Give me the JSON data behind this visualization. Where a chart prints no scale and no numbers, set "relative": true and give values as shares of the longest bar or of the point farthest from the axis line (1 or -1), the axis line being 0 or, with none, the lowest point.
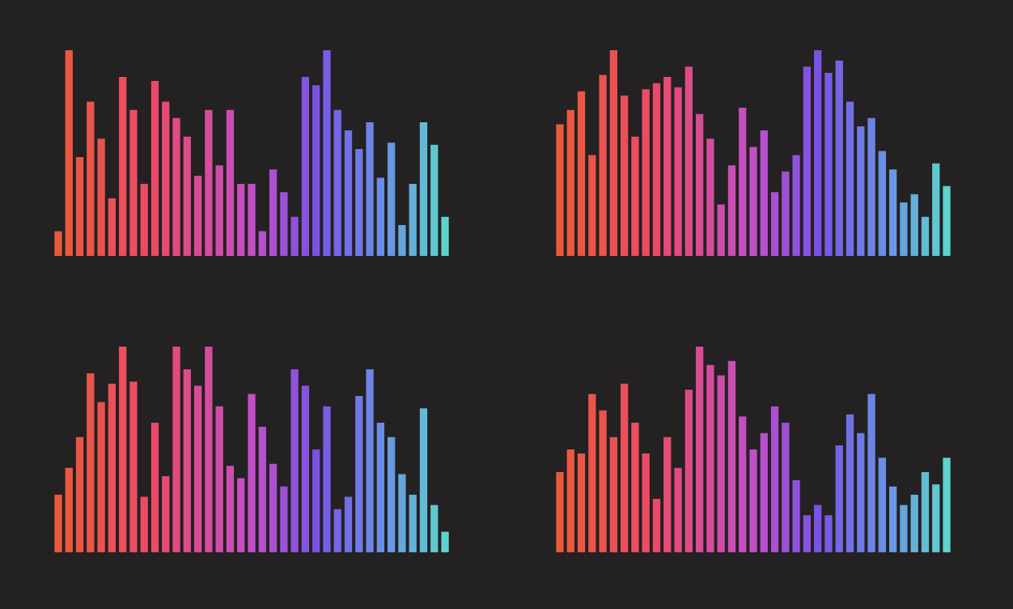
{
  "chart_data": [
    {
      "type": "bar",
      "relative": true,
      "categories": [
        null,
        null,
        null,
        null,
        null,
        null,
        null,
        null,
        null,
        null,
        null,
        null,
        null,
        null,
        null,
        null,
        null,
        null,
        null,
        null,
        null,
        null,
        null,
        null,
        null,
        null,
        null,
        null,
        null,
        null,
        null,
        null,
        null,
        null,
        null,
        null,
        null
      ],
      "values": [
        0.12,
        1.0,
        0.48,
        0.75,
        0.57,
        0.28,
        0.87,
        0.71,
        0.35,
        0.85,
        0.75,
        0.67,
        0.58,
        0.39,
        0.71,
        0.44,
        0.71,
        0.35,
        0.35,
        0.12,
        0.42,
        0.31,
        0.19,
        0.87,
        0.83,
        1.0,
        0.71,
        0.61,
        0.52,
        0.65,
        0.38,
        0.55,
        0.15,
        0.35,
        0.65,
        0.54,
        0.19
      ],
      "colors": [
        "#ea5a3a",
        "#ea583f",
        "#ea5645",
        "#ea554a",
        "#ea534f",
        "#ea5155",
        "#ea4f5a",
        "#ea4e5f",
        "#ea4c65",
        "#ea4a6a",
        "#e64b74",
        "#e14b7f",
        "#dd4c89",
        "#d84c94",
        "#d44d9e",
        "#cf4da9",
        "#cb4eb3",
        "#c64ebe",
        "#c24fc8",
        "#b650cd",
        "#aa50d1",
        "#9e51d6",
        "#9251db",
        "#8652df",
        "#7a52e4",
        "#775ce4",
        "#7566e5",
        "#7270e5",
        "#6f7ae5",
        "#6d84e6",
        "#6a8ee6",
        "#6899e2",
        "#66a5dd",
        "#64b0d9",
        "#62bbd5",
        "#60c7d0",
        "#5ed2cc"
      ]
    },
    {
      "type": "bar",
      "relative": true,
      "categories": [
        null,
        null,
        null,
        null,
        null,
        null,
        null,
        null,
        null,
        null,
        null,
        null,
        null,
        null,
        null,
        null,
        null,
        null,
        null,
        null,
        null,
        null,
        null,
        null,
        null,
        null,
        null,
        null,
        null,
        null,
        null,
        null,
        null,
        null,
        null,
        null,
        null
      ],
      "values": [
        0.64,
        0.71,
        0.8,
        0.49,
        0.88,
        1.0,
        0.78,
        0.58,
        0.81,
        0.84,
        0.87,
        0.82,
        0.92,
        0.69,
        0.57,
        0.25,
        0.44,
        0.72,
        0.53,
        0.61,
        0.31,
        0.41,
        0.49,
        0.92,
        1.0,
        0.89,
        0.95,
        0.75,
        0.63,
        0.67,
        0.51,
        0.42,
        0.26,
        0.3,
        0.19,
        0.45,
        0.34
      ],
      "colors": [
        "#ea5a3a",
        "#ea583f",
        "#ea5645",
        "#ea554a",
        "#ea534f",
        "#ea5155",
        "#ea4f5a",
        "#ea4e5f",
        "#ea4c65",
        "#ea4a6a",
        "#e64b74",
        "#e14b7f",
        "#dd4c89",
        "#d84c94",
        "#d44d9e",
        "#cf4da9",
        "#cb4eb3",
        "#c64ebe",
        "#c24fc8",
        "#b650cd",
        "#aa50d1",
        "#9e51d6",
        "#9251db",
        "#8652df",
        "#7a52e4",
        "#775ce4",
        "#7566e5",
        "#7270e5",
        "#6f7ae5",
        "#6d84e6",
        "#6a8ee6",
        "#6899e2",
        "#66a5dd",
        "#64b0d9",
        "#62bbd5",
        "#60c7d0",
        "#5ed2cc"
      ]
    },
    {
      "type": "bar",
      "relative": true,
      "categories": [
        null,
        null,
        null,
        null,
        null,
        null,
        null,
        null,
        null,
        null,
        null,
        null,
        null,
        null,
        null,
        null,
        null,
        null,
        null,
        null,
        null,
        null,
        null,
        null,
        null,
        null,
        null,
        null,
        null,
        null,
        null,
        null,
        null,
        null,
        null,
        null,
        null
      ],
      "values": [
        0.28,
        0.41,
        0.56,
        0.87,
        0.73,
        0.82,
        1.0,
        0.83,
        0.27,
        0.63,
        0.37,
        1.0,
        0.89,
        0.81,
        1.0,
        0.71,
        0.42,
        0.36,
        0.77,
        0.61,
        0.43,
        0.32,
        0.89,
        0.81,
        0.5,
        0.71,
        0.21,
        0.27,
        0.76,
        0.89,
        0.63,
        0.56,
        0.38,
        0.28,
        0.7,
        0.23,
        0.1
      ],
      "colors": [
        "#ea5a3a",
        "#ea583f",
        "#ea5645",
        "#ea554a",
        "#ea534f",
        "#ea5155",
        "#ea4f5a",
        "#ea4e5f",
        "#ea4c65",
        "#ea4a6a",
        "#e64b74",
        "#e14b7f",
        "#dd4c89",
        "#d84c94",
        "#d44d9e",
        "#cf4da9",
        "#cb4eb3",
        "#c64ebe",
        "#c24fc8",
        "#b650cd",
        "#aa50d1",
        "#9e51d6",
        "#9251db",
        "#8652df",
        "#7a52e4",
        "#775ce4",
        "#7566e5",
        "#7270e5",
        "#6f7ae5",
        "#6d84e6",
        "#6a8ee6",
        "#6899e2",
        "#66a5dd",
        "#64b0d9",
        "#62bbd5",
        "#60c7d0",
        "#5ed2cc"
      ]
    },
    {
      "type": "bar",
      "relative": true,
      "categories": [
        null,
        null,
        null,
        null,
        null,
        null,
        null,
        null,
        null,
        null,
        null,
        null,
        null,
        null,
        null,
        null,
        null,
        null,
        null,
        null,
        null,
        null,
        null,
        null,
        null,
        null,
        null,
        null,
        null,
        null,
        null,
        null,
        null,
        null,
        null,
        null,
        null
      ],
      "values": [
        0.39,
        0.5,
        0.48,
        0.77,
        0.69,
        0.56,
        0.82,
        0.63,
        0.48,
        0.26,
        0.56,
        0.41,
        0.79,
        1.0,
        0.91,
        0.86,
        0.93,
        0.66,
        0.5,
        0.58,
        0.71,
        0.63,
        0.35,
        0.18,
        0.23,
        0.18,
        0.52,
        0.67,
        0.58,
        0.77,
        0.46,
        0.32,
        0.23,
        0.28,
        0.39,
        0.33,
        0.46
      ],
      "colors": [
        "#ea5a3a",
        "#ea583f",
        "#ea5645",
        "#ea554a",
        "#ea534f",
        "#ea5155",
        "#ea4f5a",
        "#ea4e5f",
        "#ea4c65",
        "#ea4a6a",
        "#e64b74",
        "#e14b7f",
        "#dd4c89",
        "#d84c94",
        "#d44d9e",
        "#cf4da9",
        "#cb4eb3",
        "#c64ebe",
        "#c24fc8",
        "#b650cd",
        "#aa50d1",
        "#9e51d6",
        "#9251db",
        "#8652df",
        "#7a52e4",
        "#775ce4",
        "#7566e5",
        "#7270e5",
        "#6f7ae5",
        "#6d84e6",
        "#6a8ee6",
        "#6899e2",
        "#66a5dd",
        "#64b0d9",
        "#62bbd5",
        "#60c7d0",
        "#5ed2cc"
      ]
    }
  ]
}
